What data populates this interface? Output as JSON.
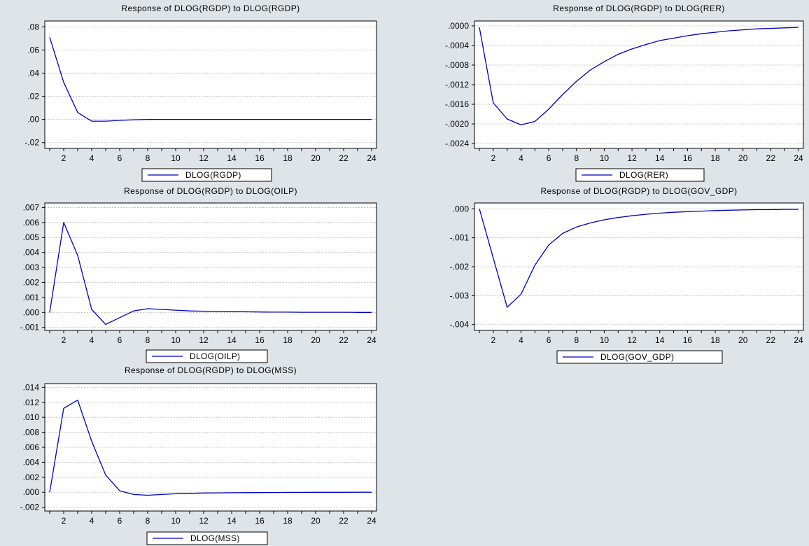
{
  "chart_data": [
    {
      "type": "line",
      "title": "Response of DLOG(RGDP) to DLOG(RGDP)",
      "x": [
        1,
        2,
        3,
        4,
        5,
        6,
        7,
        8,
        9,
        10,
        11,
        12,
        13,
        14,
        15,
        16,
        17,
        18,
        19,
        20,
        21,
        22,
        23,
        24
      ],
      "x_ticks": [
        2,
        4,
        6,
        8,
        10,
        12,
        14,
        16,
        18,
        20,
        22,
        24
      ],
      "ylim": [
        -0.025,
        0.085
      ],
      "y_ticks": [
        -0.02,
        0.0,
        0.02,
        0.04,
        0.06,
        0.08
      ],
      "y_tick_labels": [
        "-.02",
        ".00",
        ".02",
        ".04",
        ".06",
        ".08"
      ],
      "grid": true,
      "legend_position": "bottom",
      "series": [
        {
          "name": "DLOG(RGDP)",
          "color": "#0000c0",
          "values": [
            0.071,
            0.032,
            0.006,
            -0.0015,
            -0.0015,
            -0.0008,
            -0.0003,
            0,
            0,
            0,
            0,
            0,
            0,
            0,
            0,
            0,
            0,
            0,
            0,
            0,
            0,
            0,
            0,
            0
          ]
        }
      ]
    },
    {
      "type": "line",
      "title": "Response of DLOG(RGDP) to DLOG(RER)",
      "x": [
        1,
        2,
        3,
        4,
        5,
        6,
        7,
        8,
        9,
        10,
        11,
        12,
        13,
        14,
        15,
        16,
        17,
        18,
        19,
        20,
        21,
        22,
        23,
        24
      ],
      "x_ticks": [
        2,
        4,
        6,
        8,
        10,
        12,
        14,
        16,
        18,
        20,
        22,
        24
      ],
      "ylim": [
        -0.0025,
        0.0001
      ],
      "y_ticks": [
        -0.0024,
        -0.002,
        -0.0016,
        -0.0012,
        -0.0008,
        -0.0004,
        0.0
      ],
      "y_tick_labels": [
        "-.0024",
        "-.0020",
        "-.0016",
        "-.0012",
        "-.0008",
        "-.0004",
        ".0000"
      ],
      "grid": true,
      "legend_position": "bottom",
      "series": [
        {
          "name": "DLOG(RER)",
          "color": "#0000c0",
          "values": [
            -3e-05,
            -0.00157,
            -0.0019,
            -0.00202,
            -0.00195,
            -0.0017,
            -0.0014,
            -0.00113,
            -0.0009,
            -0.00073,
            -0.00058,
            -0.00047,
            -0.00038,
            -0.0003,
            -0.00025,
            -0.0002,
            -0.00016,
            -0.00013,
            -0.0001,
            -8e-05,
            -6e-05,
            -5e-05,
            -4e-05,
            -3e-05
          ]
        }
      ]
    },
    {
      "type": "line",
      "title": "Response of DLOG(RGDP) to DLOG(OILP)",
      "x": [
        1,
        2,
        3,
        4,
        5,
        6,
        7,
        8,
        9,
        10,
        11,
        12,
        13,
        14,
        15,
        16,
        17,
        18,
        19,
        20,
        21,
        22,
        23,
        24
      ],
      "x_ticks": [
        2,
        4,
        6,
        8,
        10,
        12,
        14,
        16,
        18,
        20,
        22,
        24
      ],
      "ylim": [
        -0.0012,
        0.0073
      ],
      "y_ticks": [
        -0.001,
        0.0,
        0.001,
        0.002,
        0.003,
        0.004,
        0.005,
        0.006,
        0.007
      ],
      "y_tick_labels": [
        "-.001",
        ".000",
        ".001",
        ".002",
        ".003",
        ".004",
        ".005",
        ".006",
        ".007"
      ],
      "grid": true,
      "legend_position": "bottom",
      "series": [
        {
          "name": "DLOG(OILP)",
          "color": "#0000c0",
          "values": [
            0.0,
            0.006,
            0.0038,
            0.0002,
            -0.0008,
            -0.00035,
            0.0001,
            0.00025,
            0.0002,
            0.00015,
            0.0001,
            8e-05,
            6e-05,
            5e-05,
            4e-05,
            3e-05,
            2e-05,
            2e-05,
            1e-05,
            1e-05,
            1e-05,
            1e-05,
            0.0,
            0.0
          ]
        }
      ]
    },
    {
      "type": "line",
      "title": "Response of DLOG(RGDP) to DLOG(GOV_GDP)",
      "x": [
        1,
        2,
        3,
        4,
        5,
        6,
        7,
        8,
        9,
        10,
        11,
        12,
        13,
        14,
        15,
        16,
        17,
        18,
        19,
        20,
        21,
        22,
        23,
        24
      ],
      "x_ticks": [
        2,
        4,
        6,
        8,
        10,
        12,
        14,
        16,
        18,
        20,
        22,
        24
      ],
      "ylim": [
        -0.0042,
        0.0002
      ],
      "y_ticks": [
        -0.004,
        -0.003,
        -0.002,
        -0.001,
        0.0
      ],
      "y_tick_labels": [
        "-.004",
        "-.003",
        "-.002",
        "-.001",
        ".000"
      ],
      "grid": true,
      "legend_position": "bottom",
      "series": [
        {
          "name": "DLOG(GOV_GDP)",
          "color": "#0000c0",
          "values": [
            0.0,
            -0.0017,
            -0.0034,
            -0.00295,
            -0.00195,
            -0.00125,
            -0.00085,
            -0.00063,
            -0.00049,
            -0.00038,
            -0.0003,
            -0.00024,
            -0.00019,
            -0.00015,
            -0.00012,
            -0.0001,
            -8e-05,
            -6e-05,
            -5e-05,
            -4e-05,
            -3e-05,
            -3e-05,
            -2e-05,
            -2e-05
          ]
        }
      ]
    },
    {
      "type": "line",
      "title": "Response of DLOG(RGDP) to DLOG(MSS)",
      "x": [
        1,
        2,
        3,
        4,
        5,
        6,
        7,
        8,
        9,
        10,
        11,
        12,
        13,
        14,
        15,
        16,
        17,
        18,
        19,
        20,
        21,
        22,
        23,
        24
      ],
      "x_ticks": [
        2,
        4,
        6,
        8,
        10,
        12,
        14,
        16,
        18,
        20,
        22,
        24
      ],
      "ylim": [
        -0.0025,
        0.0145
      ],
      "y_ticks": [
        -0.002,
        0.0,
        0.002,
        0.004,
        0.006,
        0.008,
        0.01,
        0.012,
        0.014
      ],
      "y_tick_labels": [
        "-.002",
        ".000",
        ".002",
        ".004",
        ".006",
        ".008",
        ".010",
        ".012",
        ".014"
      ],
      "grid": true,
      "legend_position": "bottom",
      "series": [
        {
          "name": "DLOG(MSS)",
          "color": "#0000c0",
          "values": [
            0.0,
            0.0112,
            0.0123,
            0.0068,
            0.0023,
            0.0002,
            -0.0003,
            -0.0004,
            -0.0003,
            -0.0002,
            -0.00015,
            -0.0001,
            -8e-05,
            -6e-05,
            -5e-05,
            -4e-05,
            -3e-05,
            -2e-05,
            -2e-05,
            -1e-05,
            -1e-05,
            -1e-05,
            0.0,
            0.0
          ]
        }
      ]
    }
  ]
}
